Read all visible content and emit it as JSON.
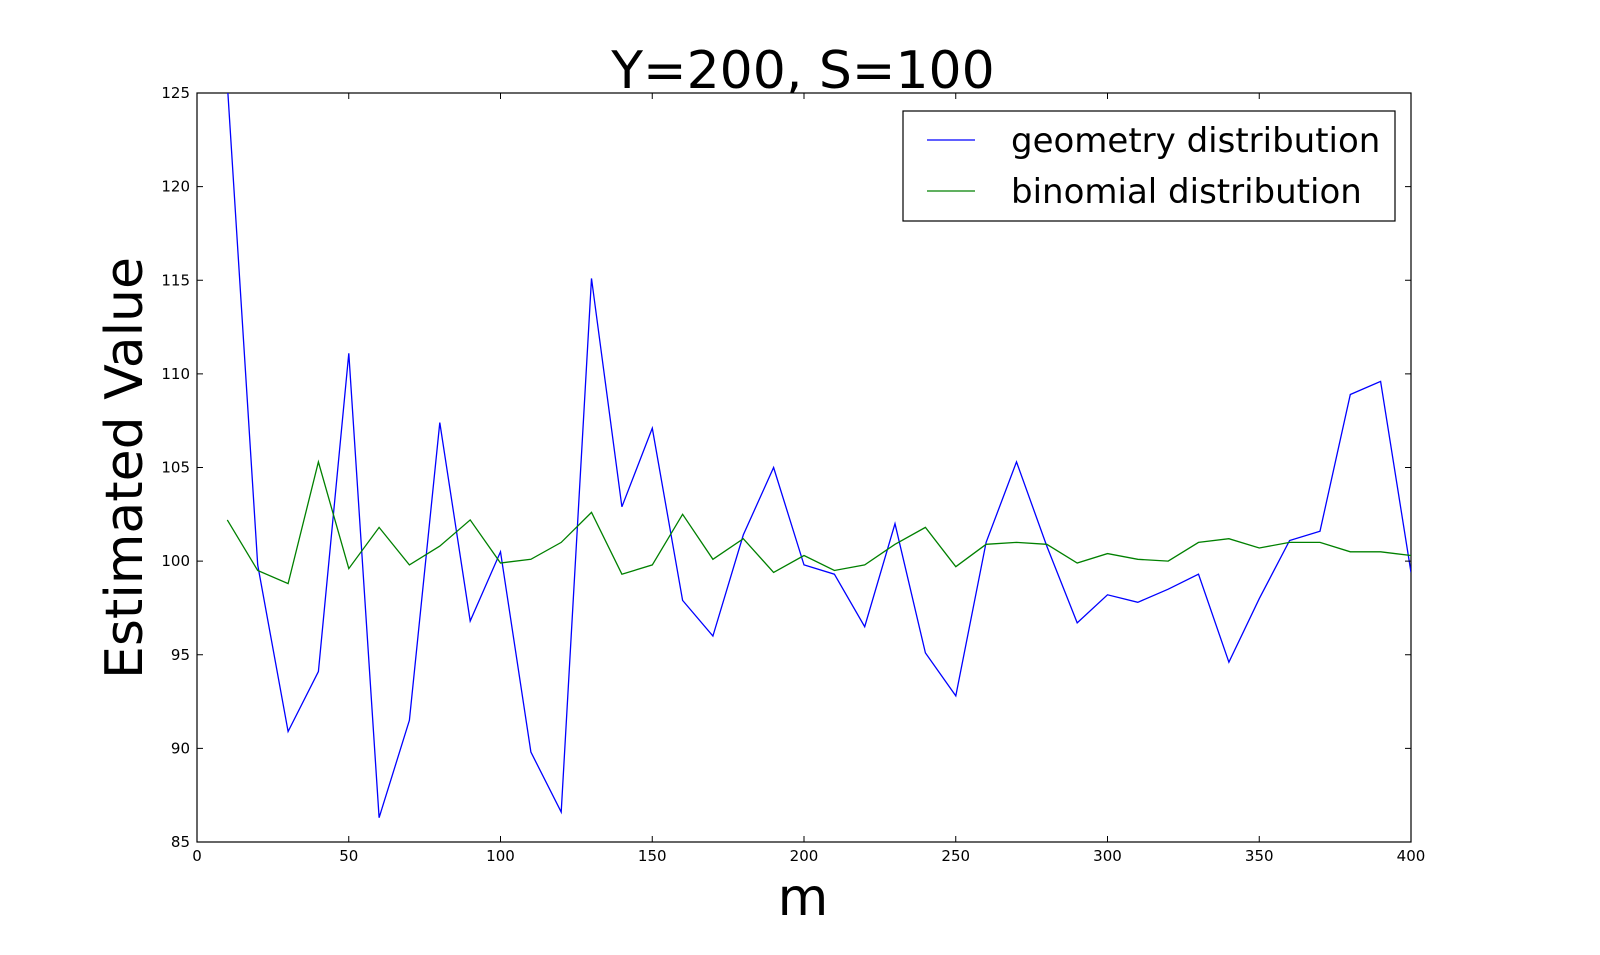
{
  "chart_data": {
    "type": "line",
    "title": "Y=200, S=100",
    "xlabel": "m",
    "ylabel": "Estimated Value",
    "xlim": [
      0,
      400
    ],
    "ylim": [
      85,
      125
    ],
    "x_ticks": [
      "0",
      "50",
      "100",
      "150",
      "200",
      "250",
      "300",
      "350",
      "400"
    ],
    "y_ticks": [
      "85",
      "90",
      "95",
      "100",
      "105",
      "110",
      "115",
      "120",
      "125"
    ],
    "grid": false,
    "legend_position": "top-right",
    "x": [
      10,
      20,
      30,
      40,
      50,
      60,
      70,
      80,
      90,
      100,
      110,
      120,
      130,
      140,
      150,
      160,
      170,
      180,
      190,
      200,
      210,
      220,
      230,
      240,
      250,
      260,
      270,
      280,
      290,
      300,
      310,
      320,
      330,
      340,
      350,
      360,
      370,
      380,
      390,
      400
    ],
    "series": [
      {
        "name": "geometry distribution",
        "color": "#0000ff",
        "values": [
          125.5,
          99.8,
          90.9,
          94.1,
          111.1,
          86.3,
          91.5,
          107.4,
          96.8,
          100.5,
          89.8,
          86.6,
          115.1,
          102.9,
          107.1,
          97.9,
          96.0,
          101.4,
          105.0,
          99.8,
          99.3,
          96.5,
          102.0,
          95.1,
          92.8,
          101.0,
          105.3,
          100.8,
          96.7,
          98.2,
          97.8,
          98.5,
          99.3,
          94.6,
          98.0,
          101.1,
          101.6,
          108.9,
          109.6,
          99.4
        ]
      },
      {
        "name": "binomial distribution",
        "color": "#008000",
        "values": [
          102.2,
          99.5,
          98.8,
          105.3,
          99.6,
          101.8,
          99.8,
          100.8,
          102.2,
          99.9,
          100.1,
          101.0,
          102.6,
          99.3,
          99.8,
          102.5,
          100.1,
          101.2,
          99.4,
          100.3,
          99.5,
          99.8,
          100.9,
          101.8,
          99.7,
          100.9,
          101.0,
          100.9,
          99.9,
          100.4,
          100.1,
          100.0,
          101.0,
          101.2,
          100.7,
          101.0,
          101.0,
          100.5,
          100.5,
          100.3
        ]
      }
    ]
  }
}
